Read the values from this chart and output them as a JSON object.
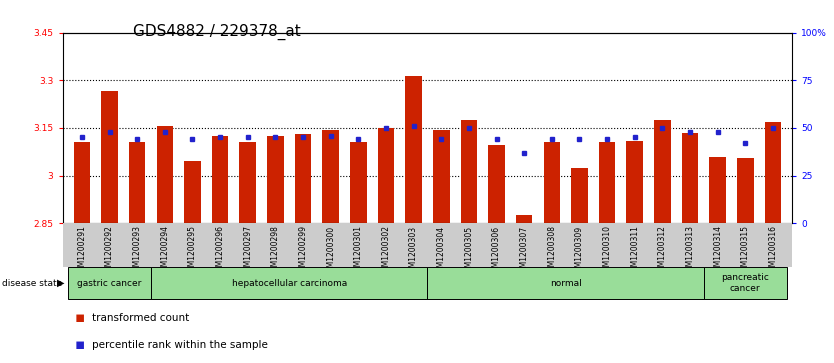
{
  "title": "GDS4882 / 229378_at",
  "samples": [
    "GSM1200291",
    "GSM1200292",
    "GSM1200293",
    "GSM1200294",
    "GSM1200295",
    "GSM1200296",
    "GSM1200297",
    "GSM1200298",
    "GSM1200299",
    "GSM1200300",
    "GSM1200301",
    "GSM1200302",
    "GSM1200303",
    "GSM1200304",
    "GSM1200305",
    "GSM1200306",
    "GSM1200307",
    "GSM1200308",
    "GSM1200309",
    "GSM1200310",
    "GSM1200311",
    "GSM1200312",
    "GSM1200313",
    "GSM1200314",
    "GSM1200315",
    "GSM1200316"
  ],
  "bar_values": [
    3.105,
    3.265,
    3.105,
    3.155,
    3.045,
    3.125,
    3.105,
    3.125,
    3.132,
    3.145,
    3.105,
    3.15,
    3.315,
    3.145,
    3.175,
    3.095,
    2.875,
    3.105,
    3.025,
    3.105,
    3.11,
    3.175,
    3.135,
    3.06,
    3.055,
    3.17
  ],
  "percentile_values": [
    45,
    48,
    44,
    48,
    44,
    45,
    45,
    45,
    45,
    46,
    44,
    50,
    51,
    44,
    50,
    44,
    37,
    44,
    44,
    44,
    45,
    50,
    48,
    48,
    42,
    50
  ],
  "ymin": 2.85,
  "ymax": 3.45,
  "yticks": [
    2.85,
    3.0,
    3.15,
    3.3,
    3.45
  ],
  "ytick_labels": [
    "2.85",
    "3",
    "3.15",
    "3.3",
    "3.45"
  ],
  "right_yticks": [
    0,
    25,
    50,
    75,
    100
  ],
  "right_yticklabels": [
    "0",
    "25",
    "50",
    "75",
    "100%"
  ],
  "bar_color": "#cc2200",
  "dot_color": "#2222cc",
  "bg_color": "#ffffff",
  "plot_bg_color": "#ffffff",
  "group_color": "#99dd99",
  "group_border_color": "#000000",
  "xtick_bg_color": "#cccccc",
  "grid_linestyle": ":",
  "grid_linewidth": 0.8,
  "title_fontsize": 11,
  "tick_fontsize": 6.5,
  "xtick_fontsize": 5.5,
  "label_fontsize": 8,
  "groups": [
    {
      "label": "gastric cancer",
      "start": 0,
      "end": 3
    },
    {
      "label": "hepatocellular carcinoma",
      "start": 3,
      "end": 13
    },
    {
      "label": "normal",
      "start": 13,
      "end": 23
    },
    {
      "label": "pancreatic\ncancer",
      "start": 23,
      "end": 26
    }
  ]
}
